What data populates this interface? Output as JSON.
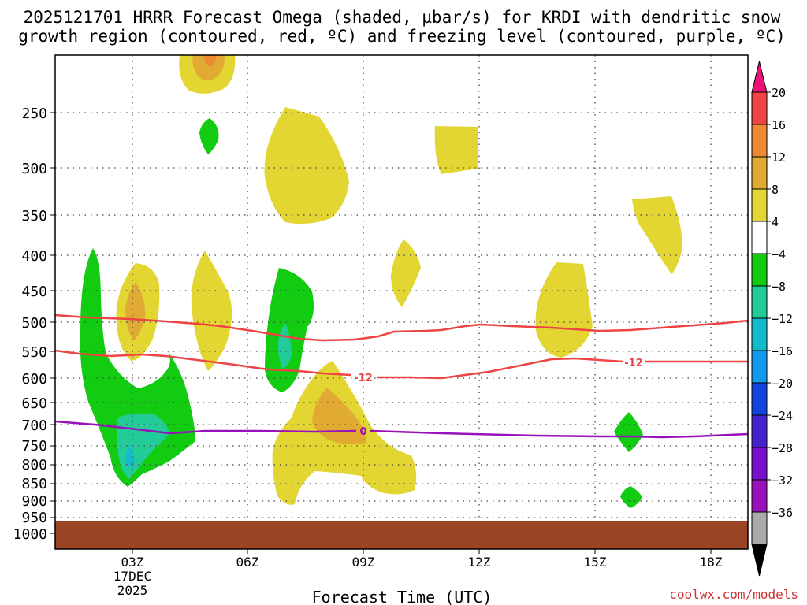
{
  "chart_data": {
    "type": "contour",
    "title_line1": "2025121701 HRRR Forecast Omega (shaded, µbar/s) for KRDI with dendritic snow",
    "title_line2": "growth region (contoured, red, ºC) and freezing level (contoured, purple, ºC)",
    "xlabel": "Forecast Time (UTC)",
    "credit": "coolwx.com/models",
    "x_range_hours": [
      0,
      18
    ],
    "x_ticks": [
      {
        "label": "03Z",
        "hour": 2
      },
      {
        "label": "06Z",
        "hour": 5
      },
      {
        "label": "09Z",
        "hour": 8
      },
      {
        "label": "12Z",
        "hour": 11
      },
      {
        "label": "15Z",
        "hour": 14
      },
      {
        "label": "18Z",
        "hour": 17
      }
    ],
    "date_label": "17DEC",
    "year_label": "2025",
    "y_ticks": [
      "250",
      "300",
      "350",
      "400",
      "450",
      "500",
      "550",
      "600",
      "650",
      "700",
      "750",
      "800",
      "850",
      "900",
      "950",
      "1000"
    ],
    "y_tick_values": [
      250,
      300,
      350,
      400,
      450,
      500,
      550,
      600,
      650,
      700,
      750,
      800,
      850,
      900,
      950,
      1000
    ],
    "colorbar": {
      "labels": [
        "20",
        "16",
        "12",
        "8",
        "4",
        "−4",
        "−8",
        "−12",
        "−16",
        "−20",
        "−24",
        "−28",
        "−32",
        "−36"
      ],
      "colors": [
        "#ee4444",
        "#ee8833",
        "#e0aa33",
        "#e3d633",
        "#ffffff",
        "#11cc11",
        "#22cc99",
        "#11bbcc",
        "#1199ee",
        "#1144dd",
        "#4422cc",
        "#7711cc",
        "#9911bb",
        "#aaaaaa"
      ],
      "top_arrow_color": "#ee1177",
      "bottom_arrow_color": "#000000"
    },
    "contours": [
      {
        "name": "dendritic growth zone upper",
        "label": "",
        "color": "#ee4444"
      },
      {
        "name": "dendritic growth zone lower",
        "label": "-12",
        "color": "#ee4444"
      },
      {
        "name": "freezing level",
        "label": "0",
        "color": "#9911bb"
      }
    ],
    "ground_color": "#994422"
  }
}
